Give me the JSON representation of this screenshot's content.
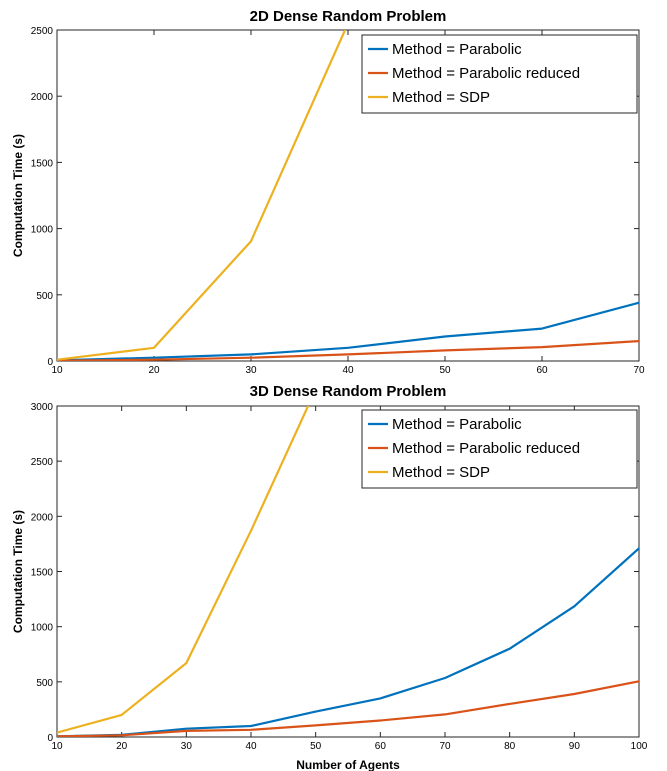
{
  "chart_data": [
    {
      "type": "line",
      "title": "2D Dense Random Problem",
      "xlabel": "",
      "ylabel": "Computation Time (s)",
      "xlim": [
        10,
        70
      ],
      "ylim": [
        0,
        2500
      ],
      "xticks": [
        10,
        20,
        30,
        40,
        50,
        60,
        70
      ],
      "yticks": [
        0,
        500,
        1000,
        1500,
        2000,
        2500
      ],
      "x": [
        10,
        20,
        30,
        40,
        50,
        60,
        70
      ],
      "grid": true,
      "legend_position": "top-right",
      "series": [
        {
          "name": "Method = Parabolic",
          "color": "#0072BD",
          "values": [
            5,
            25,
            50,
            100,
            185,
            245,
            440
          ]
        },
        {
          "name": "Method = Parabolic reduced",
          "color": "#D95319",
          "values": [
            2,
            10,
            25,
            50,
            80,
            105,
            150
          ]
        },
        {
          "name": "Method = SDP",
          "color": "#EDB120",
          "values": [
            10,
            100,
            905,
            2550,
            null,
            null,
            null
          ]
        }
      ]
    },
    {
      "type": "line",
      "title": "3D Dense Random Problem",
      "xlabel": "Number of Agents",
      "ylabel": "Computation Time (s)",
      "xlim": [
        10,
        100
      ],
      "ylim": [
        0,
        3000
      ],
      "xticks": [
        10,
        20,
        30,
        40,
        50,
        60,
        70,
        80,
        90,
        100
      ],
      "yticks": [
        0,
        500,
        1000,
        1500,
        2000,
        2500,
        3000
      ],
      "x": [
        10,
        20,
        30,
        40,
        50,
        60,
        70,
        80,
        90,
        100
      ],
      "grid": true,
      "legend_position": "top-right",
      "series": [
        {
          "name": "Method = Parabolic",
          "color": "#0072BD",
          "values": [
            5,
            20,
            75,
            100,
            230,
            350,
            535,
            800,
            1185,
            1710
          ]
        },
        {
          "name": "Method = Parabolic reduced",
          "color": "#D95319",
          "values": [
            5,
            15,
            55,
            65,
            105,
            150,
            205,
            300,
            390,
            505
          ]
        },
        {
          "name": "Method = SDP",
          "color": "#EDB120",
          "values": [
            40,
            200,
            670,
            1870,
            3150,
            null,
            null,
            null,
            null,
            null
          ]
        }
      ]
    }
  ]
}
